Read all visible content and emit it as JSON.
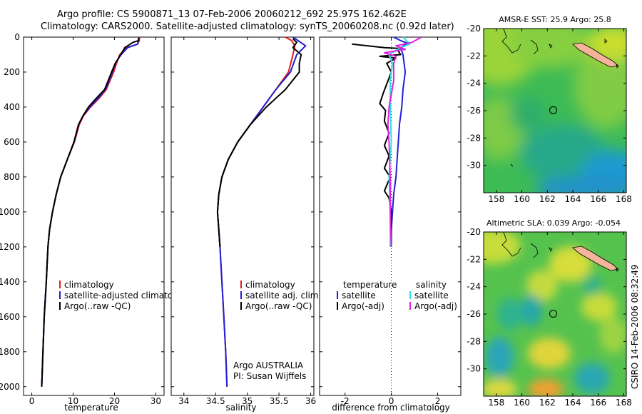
{
  "header": {
    "title_line1": "Argo profile: CS 5900871_13 07-Feb-2006 20060212_692 25.97S 162.462E",
    "title_line2": "Climatology: CARS2000. Satellite-adjusted climatology: synTS_20060208.nc (0.92d later)"
  },
  "side_text": "CSIRO 14-Feb-2006 08:32:49",
  "credit": {
    "line1": "Argo AUSTRALIA",
    "line2": "PI: Susan Wijffels"
  },
  "colors": {
    "climatology": "#e31a1c",
    "satellite": "#1f1fd6",
    "argo": "#000000",
    "sat_salinity": "#33e0e0",
    "argo_salinity": "#e020e0"
  },
  "chart_data": [
    {
      "type": "line",
      "xlabel": "temperature",
      "xlim": [
        -2,
        32
      ],
      "ylim": [
        0,
        2050
      ],
      "xticks": [
        "0",
        "10",
        "20",
        "30"
      ],
      "yticks": [
        "0",
        "200",
        "400",
        "600",
        "800",
        "1000",
        "1200",
        "1400",
        "1600",
        "1800",
        "2000"
      ],
      "legend": [
        "climatology",
        "satellite-adjusted climatology",
        "Argo(..raw -QC)"
      ],
      "series": [
        {
          "name": "climatology",
          "color": "#e31a1c",
          "points": [
            [
              26.1,
              0
            ],
            [
              26.0,
              20
            ],
            [
              25.6,
              40
            ],
            [
              23.0,
              60
            ],
            [
              21.3,
              100
            ],
            [
              20.5,
              150
            ],
            [
              19.8,
              200
            ],
            [
              18.0,
              300
            ],
            [
              16.3,
              350
            ],
            [
              14.2,
              400
            ],
            [
              12.5,
              450
            ],
            [
              11.5,
              500
            ],
            [
              10.3,
              600
            ],
            [
              8.6,
              700
            ],
            [
              7.0,
              800
            ],
            [
              5.9,
              900
            ],
            [
              5.0,
              1000
            ],
            [
              4.3,
              1100
            ],
            [
              3.9,
              1200
            ],
            [
              3.5,
              1400
            ],
            [
              3.0,
              1600
            ],
            [
              2.7,
              1800
            ],
            [
              2.4,
              2000
            ]
          ]
        },
        {
          "name": "satellite-adjusted climatology",
          "color": "#1f1fd6",
          "points": [
            [
              25.9,
              0
            ],
            [
              25.8,
              20
            ],
            [
              25.6,
              40
            ],
            [
              23.2,
              60
            ],
            [
              21.6,
              100
            ],
            [
              20.2,
              150
            ],
            [
              19.5,
              200
            ],
            [
              17.8,
              300
            ],
            [
              16.0,
              350
            ],
            [
              14.0,
              400
            ],
            [
              12.4,
              450
            ],
            [
              11.3,
              500
            ],
            [
              10.2,
              600
            ],
            [
              8.6,
              700
            ],
            [
              7.0,
              800
            ],
            [
              5.9,
              900
            ],
            [
              5.0,
              1000
            ],
            [
              4.3,
              1100
            ],
            [
              3.9,
              1200
            ],
            [
              3.5,
              1400
            ],
            [
              3.0,
              1600
            ],
            [
              2.7,
              1800
            ],
            [
              2.4,
              2000
            ]
          ]
        },
        {
          "name": "Argo(..raw -QC)",
          "color": "#000000",
          "points": [
            [
              25.8,
              5
            ],
            [
              25.8,
              20
            ],
            [
              24.5,
              30
            ],
            [
              22.5,
              60
            ],
            [
              21.5,
              100
            ],
            [
              20.2,
              150
            ],
            [
              19.3,
              200
            ],
            [
              17.6,
              300
            ],
            [
              15.6,
              350
            ],
            [
              13.7,
              400
            ],
            [
              12.4,
              450
            ],
            [
              11.3,
              500
            ],
            [
              10.2,
              600
            ],
            [
              8.6,
              700
            ],
            [
              7.0,
              800
            ],
            [
              5.9,
              900
            ],
            [
              5.0,
              1000
            ],
            [
              4.3,
              1100
            ],
            [
              3.9,
              1200
            ],
            [
              3.5,
              1400
            ],
            [
              3.0,
              1600
            ],
            [
              2.7,
              1800
            ],
            [
              2.4,
              2000
            ]
          ]
        }
      ]
    },
    {
      "type": "line",
      "xlabel": "salinity",
      "xlim": [
        33.8,
        36.05
      ],
      "ylim": [
        0,
        2050
      ],
      "xticks": [
        "34",
        "34.5",
        "35",
        "35.5",
        "36"
      ],
      "yticks": [],
      "legend": [
        "climatology",
        "satellite adj. clim.",
        "Argo(..raw -QC)"
      ],
      "series": [
        {
          "name": "climatology",
          "color": "#e31a1c",
          "points": [
            [
              35.6,
              0
            ],
            [
              35.7,
              20
            ],
            [
              35.75,
              50
            ],
            [
              35.72,
              100
            ],
            [
              35.65,
              200
            ],
            [
              35.45,
              300
            ],
            [
              35.25,
              400
            ],
            [
              35.05,
              500
            ],
            [
              34.85,
              600
            ],
            [
              34.7,
              700
            ],
            [
              34.6,
              800
            ],
            [
              34.55,
              900
            ],
            [
              34.53,
              1000
            ],
            [
              34.55,
              1100
            ],
            [
              34.57,
              1200
            ],
            [
              34.6,
              1400
            ],
            [
              34.63,
              1600
            ],
            [
              34.66,
              1800
            ],
            [
              34.68,
              2000
            ]
          ]
        },
        {
          "name": "satellite adj. clim.",
          "color": "#1f1fd6",
          "points": [
            [
              35.72,
              0
            ],
            [
              35.92,
              50
            ],
            [
              35.78,
              100
            ],
            [
              35.68,
              200
            ],
            [
              35.45,
              300
            ],
            [
              35.25,
              400
            ],
            [
              35.05,
              500
            ],
            [
              34.85,
              600
            ],
            [
              34.7,
              700
            ],
            [
              34.6,
              800
            ],
            [
              34.55,
              900
            ],
            [
              34.53,
              1000
            ],
            [
              34.55,
              1100
            ],
            [
              34.57,
              1200
            ],
            [
              34.6,
              1400
            ],
            [
              34.63,
              1600
            ],
            [
              34.66,
              1800
            ],
            [
              34.68,
              2000
            ]
          ]
        },
        {
          "name": "Argo(..raw -QC)",
          "color": "#000000",
          "points": [
            [
              35.72,
              10
            ],
            [
              35.78,
              30
            ],
            [
              35.72,
              60
            ],
            [
              35.85,
              100
            ],
            [
              35.82,
              150
            ],
            [
              35.82,
              200
            ],
            [
              35.6,
              300
            ],
            [
              35.3,
              400
            ],
            [
              35.05,
              500
            ],
            [
              34.85,
              600
            ],
            [
              34.7,
              700
            ],
            [
              34.6,
              800
            ],
            [
              34.55,
              900
            ],
            [
              34.53,
              1000
            ],
            [
              34.55,
              1100
            ],
            [
              34.57,
              1200
            ]
          ]
        }
      ]
    },
    {
      "type": "line",
      "xlabel": "difference from climatology",
      "xlim": [
        -3.1,
        3.0
      ],
      "ylim": [
        0,
        2050
      ],
      "xticks": [
        "-2",
        "0",
        "2"
      ],
      "yticks": [],
      "legend_temperature_title": "temperature",
      "legend_salinity_title": "salinity",
      "legend": [
        "satellite",
        "Argo(-adj)",
        "satellite",
        "Argo(-adj)"
      ],
      "series": [
        {
          "name": "satellite",
          "group": "temperature",
          "color": "#1f1fd6",
          "points": [
            [
              0.1,
              0
            ],
            [
              0.4,
              20
            ],
            [
              0.7,
              35
            ],
            [
              0.4,
              60
            ],
            [
              0.5,
              100
            ],
            [
              0.55,
              150
            ],
            [
              0.6,
              200
            ],
            [
              0.5,
              300
            ],
            [
              0.45,
              400
            ],
            [
              0.35,
              500
            ],
            [
              0.3,
              600
            ],
            [
              0.25,
              700
            ],
            [
              0.2,
              800
            ],
            [
              0.1,
              900
            ],
            [
              0.05,
              1000
            ],
            [
              0.0,
              1100
            ],
            [
              0.0,
              1200
            ]
          ]
        },
        {
          "name": "Argo(-adj)",
          "group": "temperature",
          "color": "#000000",
          "points": [
            [
              -1.7,
              40
            ],
            [
              -0.3,
              60
            ],
            [
              0.35,
              65
            ],
            [
              0.3,
              80
            ],
            [
              0.4,
              100
            ],
            [
              -0.5,
              110
            ],
            [
              0.2,
              120
            ],
            [
              -0.2,
              150
            ],
            [
              0.0,
              200
            ],
            [
              -0.35,
              320
            ],
            [
              -0.5,
              380
            ],
            [
              -0.25,
              420
            ],
            [
              -0.3,
              480
            ],
            [
              -0.1,
              550
            ],
            [
              -0.3,
              620
            ],
            [
              -0.1,
              680
            ],
            [
              -0.3,
              750
            ],
            [
              -0.05,
              800
            ],
            [
              -0.3,
              880
            ],
            [
              -0.1,
              920
            ],
            [
              0.0,
              1000
            ],
            [
              0.0,
              1200
            ]
          ]
        },
        {
          "name": "satellite",
          "group": "salinity",
          "color": "#33e0e0",
          "points": [
            [
              0.5,
              0
            ],
            [
              0.8,
              40
            ],
            [
              0.4,
              60
            ],
            [
              0.15,
              80
            ],
            [
              -0.1,
              100
            ],
            [
              0.05,
              150
            ],
            [
              -0.05,
              250
            ],
            [
              -0.05,
              400
            ],
            [
              0.0,
              600
            ],
            [
              -0.1,
              800
            ],
            [
              -0.05,
              1000
            ],
            [
              -0.05,
              1200
            ]
          ]
        },
        {
          "name": "Argo(-adj)",
          "group": "salinity",
          "color": "#e020e0",
          "points": [
            [
              1.3,
              0
            ],
            [
              0.9,
              30
            ],
            [
              0.2,
              50
            ],
            [
              0.6,
              70
            ],
            [
              -0.3,
              90
            ],
            [
              0.2,
              110
            ],
            [
              0.1,
              150
            ],
            [
              0.1,
              250
            ],
            [
              -0.1,
              400
            ],
            [
              -0.15,
              500
            ],
            [
              -0.1,
              600
            ],
            [
              -0.05,
              800
            ],
            [
              -0.05,
              1000
            ],
            [
              0.0,
              1200
            ]
          ]
        }
      ]
    },
    {
      "type": "heatmap",
      "title": "AMSR-E SST: 25.9 Argo: 25.8",
      "xlim": [
        157,
        168.2
      ],
      "ylim": [
        -32,
        -20
      ],
      "xticks": [
        "158",
        "160",
        "162",
        "164",
        "166",
        "168"
      ],
      "yticks": [
        "-20",
        "-22",
        "-24",
        "-26",
        "-28",
        "-30"
      ],
      "marker": {
        "lon": 162.46,
        "lat": -25.97
      }
    },
    {
      "type": "heatmap",
      "title": "Altimetric SLA: 0.039 Argo: -0.054",
      "xlim": [
        157,
        168.2
      ],
      "ylim": [
        -32,
        -20
      ],
      "xticks": [
        "158",
        "160",
        "162",
        "164",
        "166",
        "168"
      ],
      "yticks": [
        "-20",
        "-22",
        "-24",
        "-26",
        "-28",
        "-30"
      ],
      "marker": {
        "lon": 162.46,
        "lat": -25.97
      }
    }
  ]
}
